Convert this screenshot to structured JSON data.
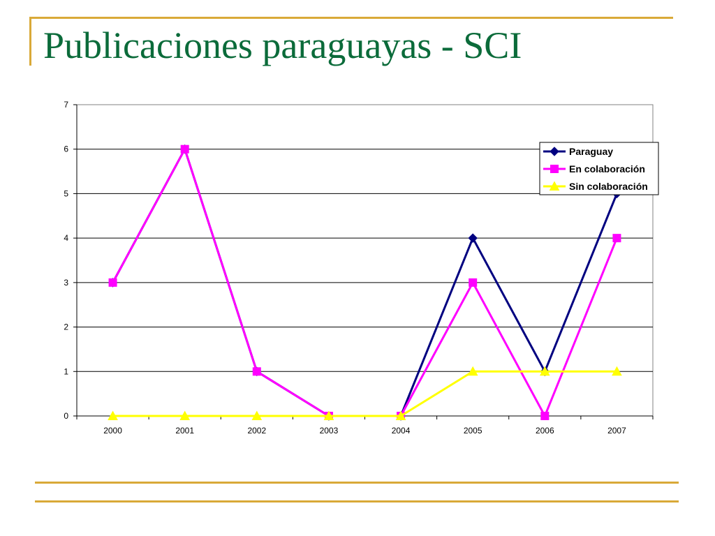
{
  "slide": {
    "title": "Publicaciones paraguayas - SCI",
    "title_color": "#0b6b3a",
    "accent_color": "#d9a938"
  },
  "chart_data": {
    "type": "line",
    "title": "",
    "xlabel": "",
    "ylabel": "",
    "categories": [
      "2000",
      "2001",
      "2002",
      "2003",
      "2004",
      "2005",
      "2006",
      "2007"
    ],
    "ylim": [
      0,
      7
    ],
    "yticks": [
      0,
      1,
      2,
      3,
      4,
      5,
      6,
      7
    ],
    "grid": "horizontal",
    "legend_position": "top-right",
    "series": [
      {
        "name": "Paraguay",
        "values": [
          3,
          6,
          1,
          0,
          0,
          4,
          1,
          5
        ],
        "color": "#000080",
        "marker": "diamond"
      },
      {
        "name": "En colaboración",
        "values": [
          3,
          6,
          1,
          0,
          0,
          3,
          0,
          4
        ],
        "color": "#ff00ff",
        "marker": "square"
      },
      {
        "name": "Sin colaboración",
        "values": [
          0,
          0,
          0,
          0,
          0,
          1,
          1,
          1
        ],
        "color": "#ffff00",
        "marker": "triangle"
      }
    ]
  }
}
